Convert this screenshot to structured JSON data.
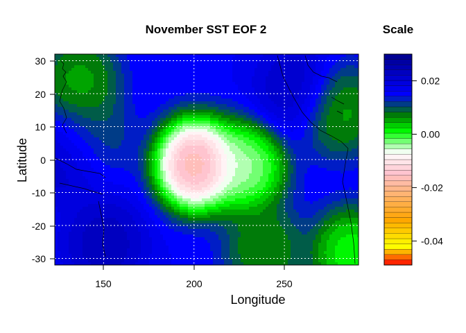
{
  "chart_data": {
    "type": "heatmap",
    "title": "November SST EOF 2",
    "xlabel": "Longitude",
    "ylabel": "Latitude",
    "xlim": [
      123,
      291
    ],
    "ylim": [
      -32,
      32
    ],
    "x_ticks": [
      "150",
      "200",
      "250"
    ],
    "x_tick_values": [
      150,
      200,
      250
    ],
    "y_ticks": [
      "30",
      "20",
      "10",
      "0",
      "-10",
      "-20",
      "-30"
    ],
    "y_tick_values": [
      30,
      20,
      10,
      0,
      -10,
      -20,
      -30
    ],
    "grid": true,
    "colorbar": {
      "title": "Scale",
      "range": [
        -0.049,
        0.03
      ],
      "ticks": [
        "0.02",
        "0.00",
        "-0.02",
        "-0.04"
      ],
      "tick_values": [
        0.02,
        0.0,
        -0.02,
        -0.04
      ],
      "colors": [
        "#ff0000",
        "#ffff00",
        "#ffa500",
        "#ffc0cb",
        "#ffffff",
        "#00ff00",
        "#008000",
        "#0000ff",
        "#00008b"
      ],
      "color_stops": [
        -0.049,
        -0.042,
        -0.032,
        -0.015,
        -0.007,
        0.001,
        0.007,
        0.015,
        0.03
      ]
    },
    "field_features": [
      {
        "kind": "ocean_background",
        "value": 0.016
      },
      {
        "kind": "minimum",
        "lon": 200,
        "lat": -1,
        "value": -0.028
      },
      {
        "kind": "negative_tail",
        "lon": 228,
        "lat": -2,
        "value": -0.01
      },
      {
        "kind": "positive_dark",
        "lon": 132,
        "lat": 2,
        "value": 0.028
      },
      {
        "kind": "positive_dark",
        "lon": 150,
        "lat": -25,
        "value": 0.026
      },
      {
        "kind": "positive_dark",
        "lon": 255,
        "lat": 22,
        "value": 0.024
      },
      {
        "kind": "near_zero",
        "lon": 136,
        "lat": 24,
        "value": 0.002
      },
      {
        "kind": "near_zero",
        "lon": 140,
        "lat": 6,
        "value": 0.004
      },
      {
        "kind": "near_zero",
        "lon": 238,
        "lat": -27,
        "value": 0.003
      },
      {
        "kind": "near_zero",
        "lon": 280,
        "lat": 15,
        "value": 0.002
      },
      {
        "kind": "near_zero",
        "lon": 286,
        "lat": -28,
        "value": -0.004
      }
    ]
  }
}
